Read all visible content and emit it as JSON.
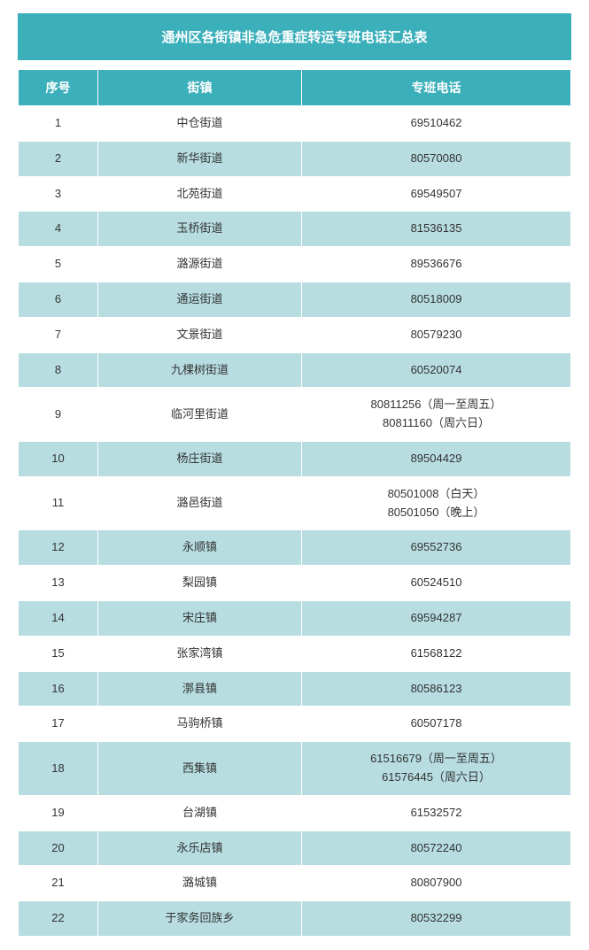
{
  "title": "通州区各街镇非急危重症转运专班电话汇总表",
  "columns": [
    "序号",
    "街镇",
    "专班电话"
  ],
  "rows": [
    {
      "idx": "1",
      "town": "中仓街道",
      "phone": "69510462"
    },
    {
      "idx": "2",
      "town": "新华街道",
      "phone": "80570080"
    },
    {
      "idx": "3",
      "town": "北苑街道",
      "phone": "69549507"
    },
    {
      "idx": "4",
      "town": "玉桥街道",
      "phone": "81536135"
    },
    {
      "idx": "5",
      "town": "潞源街道",
      "phone": "89536676"
    },
    {
      "idx": "6",
      "town": "通运街道",
      "phone": "80518009"
    },
    {
      "idx": "7",
      "town": "文景街道",
      "phone": "80579230"
    },
    {
      "idx": "8",
      "town": "九棵树街道",
      "phone": "60520074"
    },
    {
      "idx": "9",
      "town": "临河里街道",
      "phone": "80811256（周一至周五）\n80811160（周六日）"
    },
    {
      "idx": "10",
      "town": "杨庄街道",
      "phone": "89504429"
    },
    {
      "idx": "11",
      "town": "潞邑街道",
      "phone": "80501008（白天）\n80501050（晚上）"
    },
    {
      "idx": "12",
      "town": "永顺镇",
      "phone": "69552736"
    },
    {
      "idx": "13",
      "town": "梨园镇",
      "phone": "60524510"
    },
    {
      "idx": "14",
      "town": "宋庄镇",
      "phone": "69594287"
    },
    {
      "idx": "15",
      "town": "张家湾镇",
      "phone": "61568122"
    },
    {
      "idx": "16",
      "town": "漷县镇",
      "phone": "80586123"
    },
    {
      "idx": "17",
      "town": "马驹桥镇",
      "phone": "60507178"
    },
    {
      "idx": "18",
      "town": "西集镇",
      "phone": "61516679（周一至周五）\n61576445（周六日）"
    },
    {
      "idx": "19",
      "town": "台湖镇",
      "phone": "61532572"
    },
    {
      "idx": "20",
      "town": "永乐店镇",
      "phone": "80572240"
    },
    {
      "idx": "21",
      "town": "潞城镇",
      "phone": "80807900"
    },
    {
      "idx": "22",
      "town": "于家务回族乡",
      "phone": "80532299"
    }
  ],
  "colors": {
    "header_bg": "#3bafba",
    "header_text": "#ffffff",
    "row_even_bg": "#b7dde1",
    "row_odd_bg": "#ffffff",
    "cell_text": "#333333",
    "border": "#ffffff"
  }
}
